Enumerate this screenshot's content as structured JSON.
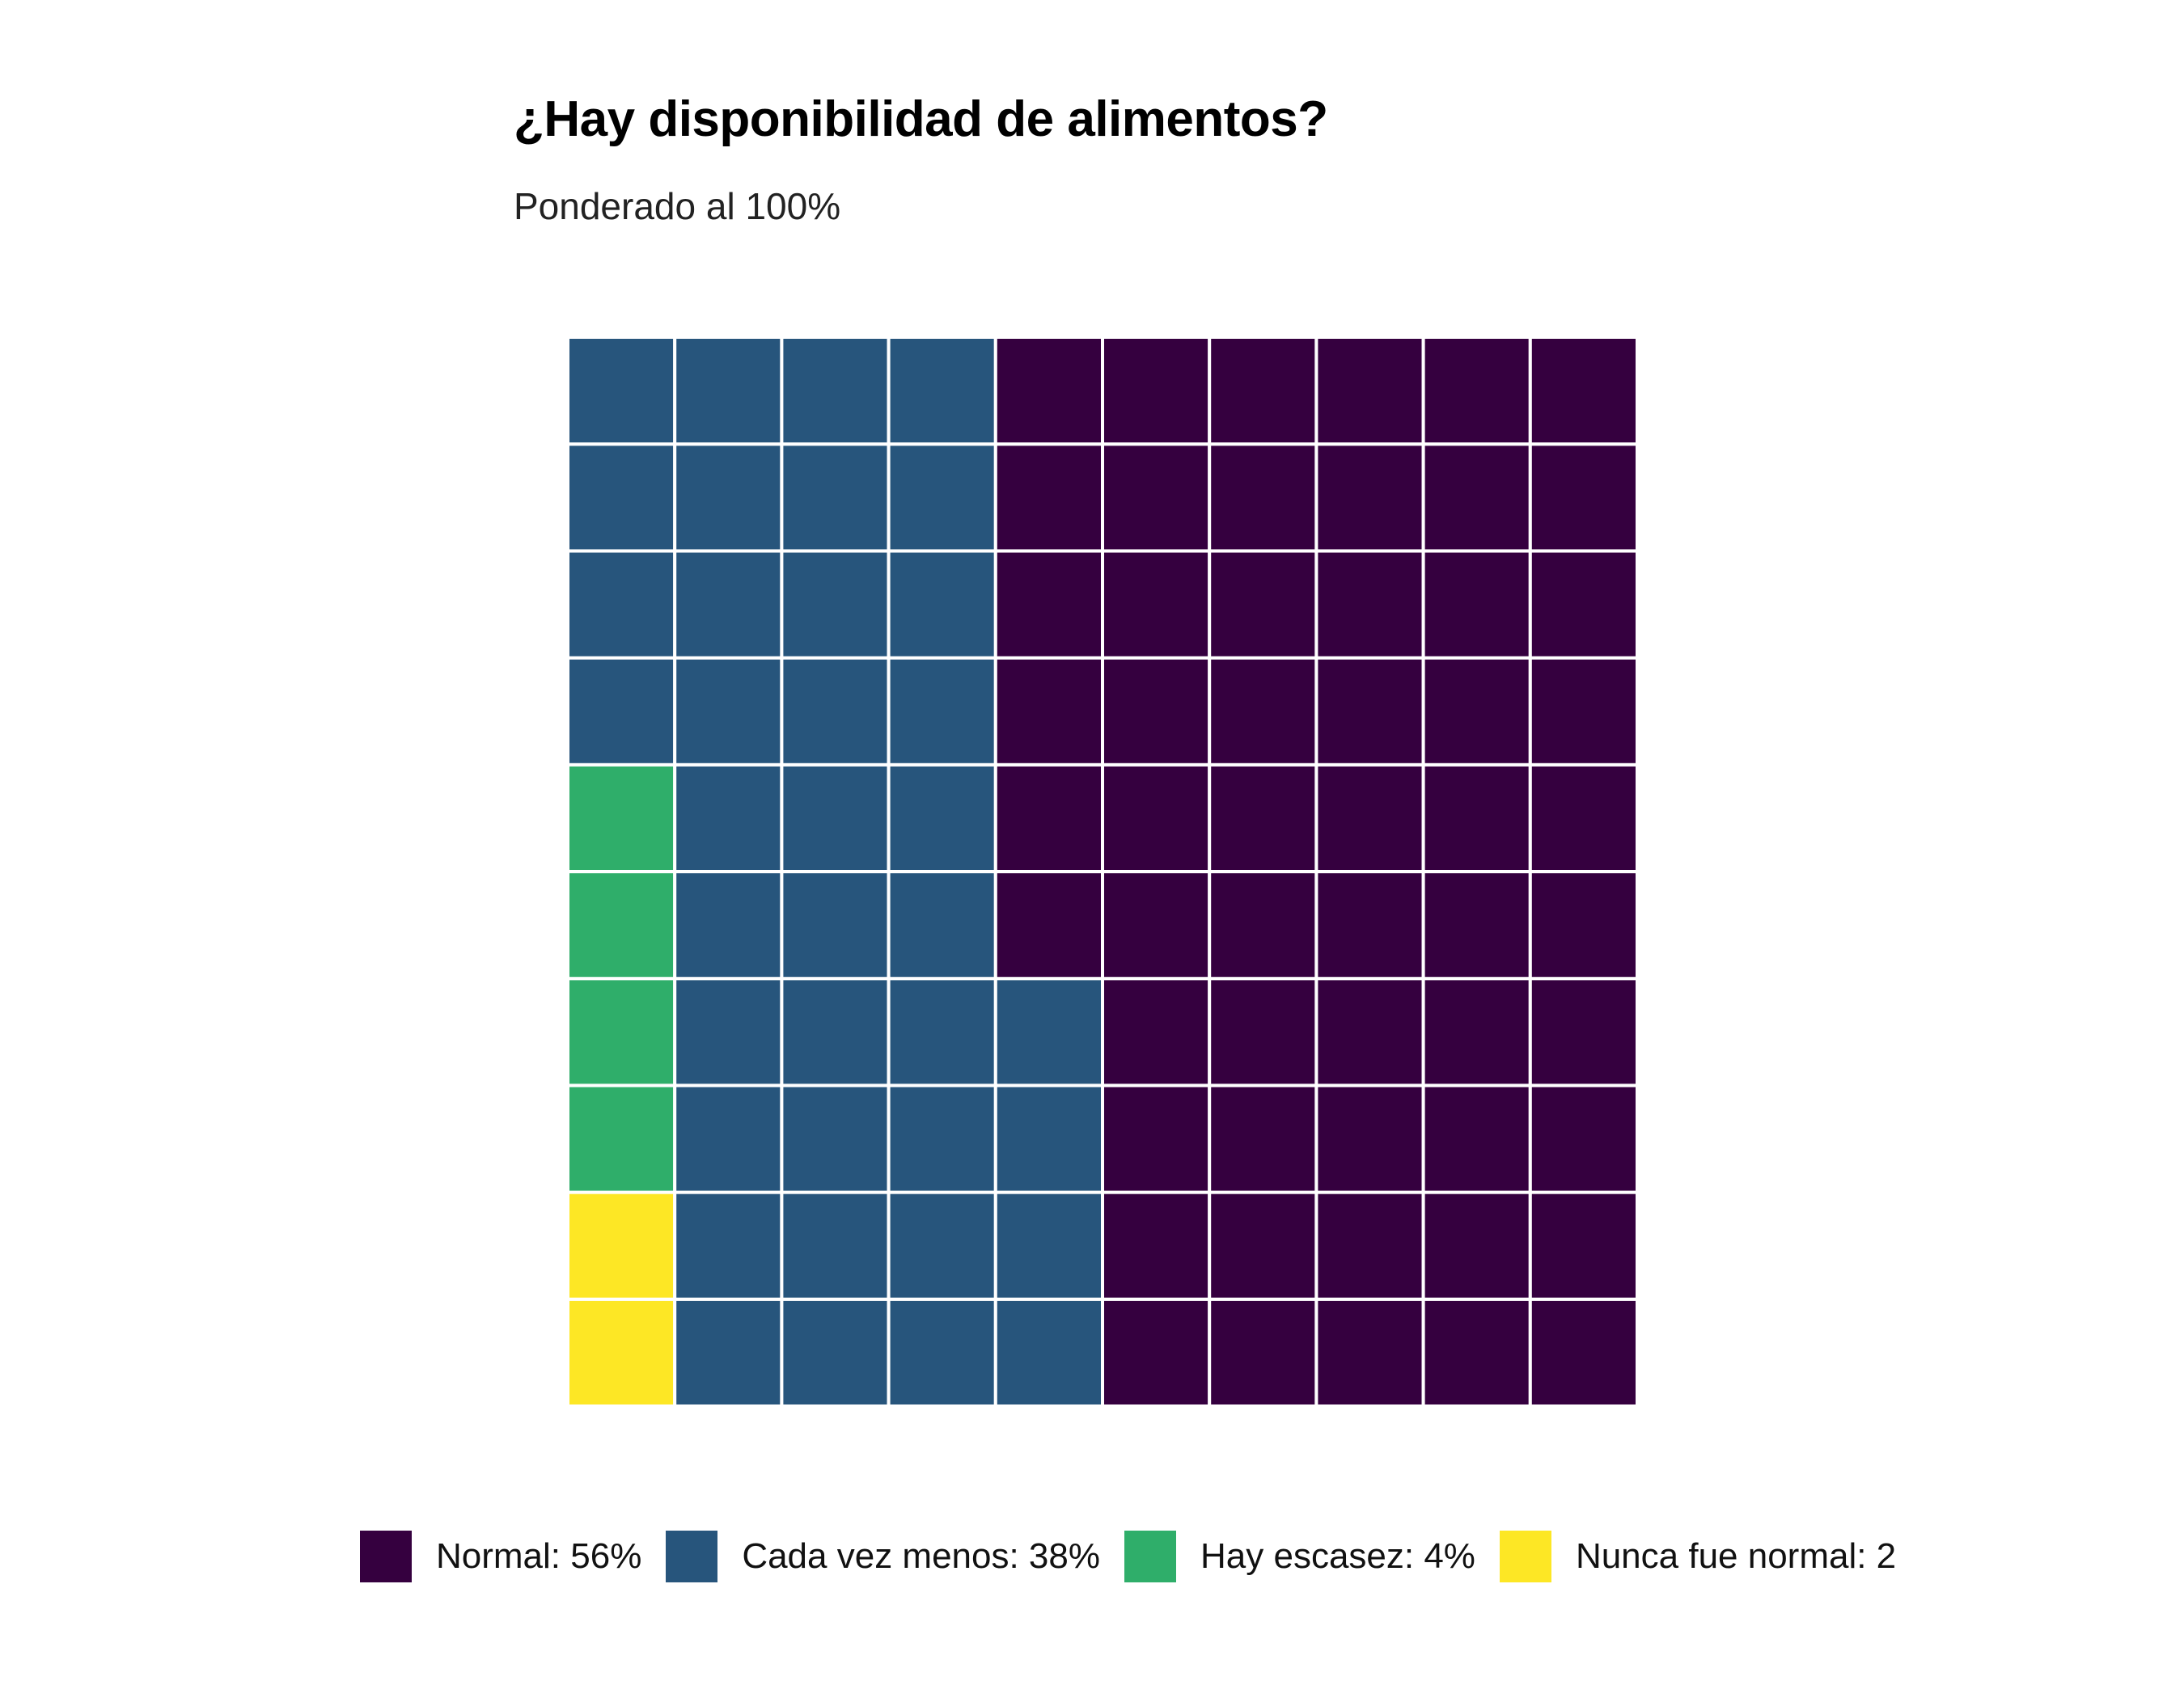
{
  "title": "¿Hay disponibilidad de alimentos?",
  "subtitle": "Ponderado al 100%",
  "chart_data": {
    "type": "waffle",
    "rows": 10,
    "cols": 10,
    "fill_order": "column-major from bottom-left",
    "grid_line_color": "#ffffff",
    "categories": [
      {
        "name": "Nunca fue normal",
        "label": "Nunca fue normal: 2",
        "count": 2,
        "color": "#fde725"
      },
      {
        "name": "Hay escasez",
        "label": "Hay escasez: 4%",
        "count": 4,
        "color": "#2fae6a"
      },
      {
        "name": "Cada vez menos",
        "label": "Cada vez menos: 38%",
        "count": 38,
        "color": "#27557c"
      },
      {
        "name": "Normal",
        "label": "Normal: 56%",
        "count": 56,
        "color": "#35003f"
      }
    ],
    "legend": {
      "placement": "bottom",
      "order": [
        "Normal: 56%",
        "Cada vez menos: 38%",
        "Hay escasez: 4%",
        "Nunca fue normal: 2"
      ]
    }
  }
}
